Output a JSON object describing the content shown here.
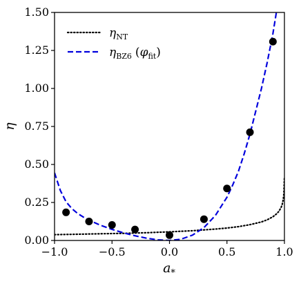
{
  "chart_data": {
    "type": "line",
    "xlabel": "a",
    "xlabel_sub": "*",
    "ylabel": "η",
    "xlim": [
      -1.0,
      1.0
    ],
    "ylim": [
      0.0,
      1.5
    ],
    "xticks": [
      -1.0,
      -0.5,
      0.0,
      0.5,
      1.0
    ],
    "xtick_labels": [
      "−1.0",
      "−0.5",
      "0.0",
      "0.5",
      "1.0"
    ],
    "yticks": [
      0.0,
      0.25,
      0.5,
      0.75,
      1.0,
      1.25,
      1.5
    ],
    "ytick_labels": [
      "0.00",
      "0.25",
      "0.50",
      "0.75",
      "1.00",
      "1.25",
      "1.50"
    ],
    "grid": false,
    "legend_position": "top-left",
    "series": [
      {
        "name": "η_NT",
        "legend_main": "η",
        "legend_sub": "NT",
        "style": "dotted",
        "color": "#000000",
        "x": [
          -1.0,
          -0.8,
          -0.6,
          -0.4,
          -0.2,
          0.0,
          0.2,
          0.4,
          0.5,
          0.6,
          0.7,
          0.8,
          0.85,
          0.9,
          0.93,
          0.95,
          0.97,
          0.98,
          0.99,
          0.995,
          1.0
        ],
        "y": [
          0.038,
          0.041,
          0.044,
          0.047,
          0.051,
          0.057,
          0.064,
          0.075,
          0.082,
          0.091,
          0.104,
          0.122,
          0.136,
          0.156,
          0.174,
          0.19,
          0.215,
          0.235,
          0.27,
          0.31,
          0.42
        ]
      },
      {
        "name": "η_BZ6 (φ_fit)",
        "legend_main": "η",
        "legend_sub": "BZ6",
        "legend_paren_open": "(",
        "legend_phi": "φ",
        "legend_phi_sub": "fit",
        "legend_paren_close": ")",
        "style": "dashed",
        "color": "#0000dd",
        "x": [
          -1.0,
          -0.95,
          -0.9,
          -0.85,
          -0.8,
          -0.75,
          -0.7,
          -0.6,
          -0.5,
          -0.4,
          -0.3,
          -0.2,
          -0.1,
          0.0,
          0.1,
          0.2,
          0.3,
          0.4,
          0.5,
          0.55,
          0.6,
          0.65,
          0.7,
          0.75,
          0.8,
          0.85,
          0.9,
          0.93
        ],
        "y": [
          0.445,
          0.33,
          0.255,
          0.21,
          0.178,
          0.154,
          0.133,
          0.1,
          0.073,
          0.05,
          0.031,
          0.015,
          0.004,
          0.0,
          0.008,
          0.035,
          0.085,
          0.165,
          0.285,
          0.365,
          0.455,
          0.57,
          0.7,
          0.85,
          1.0,
          1.17,
          1.36,
          1.5
        ]
      },
      {
        "name": "data",
        "style": "markers",
        "color": "#000000",
        "x": [
          -0.9,
          -0.7,
          -0.5,
          -0.3,
          0.0,
          0.3,
          0.5,
          0.7,
          0.9
        ],
        "y": [
          0.185,
          0.125,
          0.102,
          0.072,
          0.035,
          0.14,
          0.342,
          0.712,
          1.308
        ]
      }
    ]
  }
}
